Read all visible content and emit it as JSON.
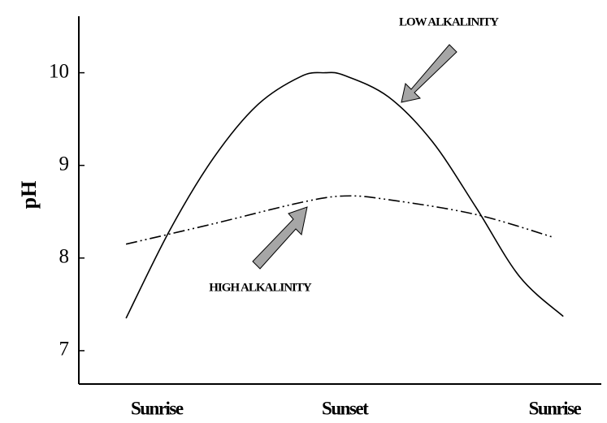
{
  "chart_data": {
    "type": "line",
    "ylabel": "pH",
    "annotations": [
      "LOW ALKALINITY",
      "HIGH ALKALINITY"
    ],
    "xlim": [
      -0.108,
      1.087
    ],
    "xticks": [
      {
        "value": 0.07,
        "label": "Sunrise"
      },
      {
        "value": 0.5,
        "label": "Sunset"
      },
      {
        "value": 0.98,
        "label": "Sunrise"
      }
    ],
    "ylim": [
      6.64,
      10.61
    ],
    "yticks": [
      7,
      8,
      9,
      10
    ],
    "series": [
      {
        "name": "LOW ALKALINITY",
        "color": "#000000",
        "dash": "solid",
        "x": [
          0,
          0.1,
          0.2,
          0.3,
          0.4,
          0.455,
          0.5,
          0.6,
          0.7,
          0.8,
          0.9,
          1
        ],
        "values": [
          7.35,
          8.3,
          9.08,
          9.65,
          9.96,
          10.0,
          9.97,
          9.74,
          9.26,
          8.55,
          7.8,
          7.37
        ]
      },
      {
        "name": "HIGH ALKALINITY",
        "color": "#000000",
        "dash": "dashdot",
        "x": [
          0,
          0.2,
          0.4,
          0.5,
          0.6,
          0.8,
          0.98
        ],
        "values": [
          8.15,
          8.37,
          8.6,
          8.67,
          8.63,
          8.47,
          8.22
        ]
      }
    ]
  }
}
